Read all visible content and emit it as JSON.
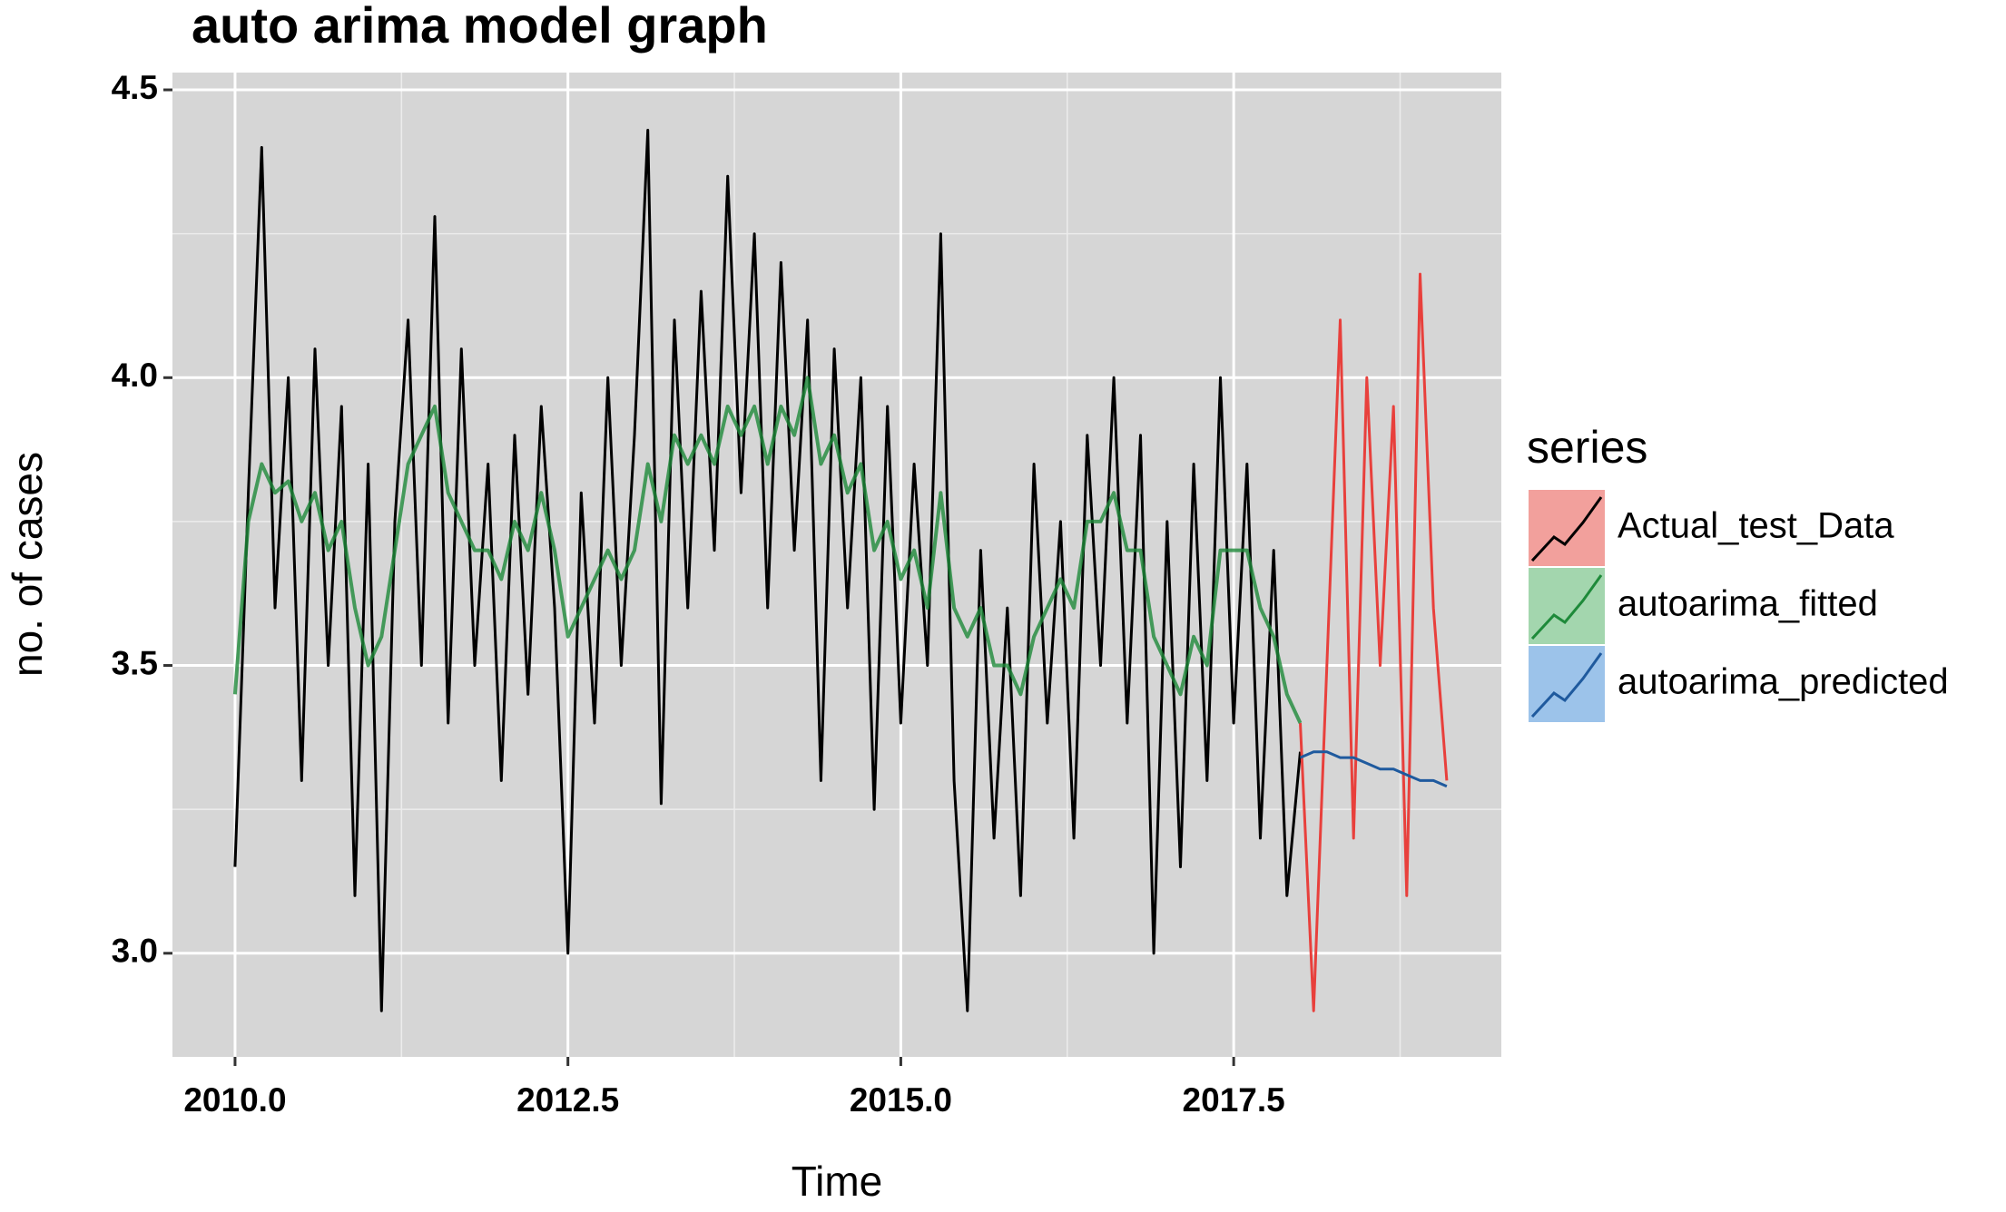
{
  "chart_data": {
    "type": "line",
    "title": "auto arima model graph",
    "x_label": "Time",
    "y_label": "no. of cases",
    "legend_title": "series",
    "legend": "right",
    "grid": true,
    "xlim": [
      2009.53,
      2019.51
    ],
    "ylim": [
      2.82,
      4.53
    ],
    "xticks": [
      {
        "value": 2010.0,
        "label": "2010.0"
      },
      {
        "value": 2012.5,
        "label": "2012.5"
      },
      {
        "value": 2015.0,
        "label": "2015.0"
      },
      {
        "value": 2017.5,
        "label": "2017.5"
      }
    ],
    "yticks": [
      {
        "value": 3.0,
        "label": "3.0"
      },
      {
        "value": 3.5,
        "label": "3.5"
      },
      {
        "value": 4.0,
        "label": "4.0"
      },
      {
        "value": 4.5,
        "label": "4.5"
      }
    ],
    "xticks_minor": [
      2011.25,
      2013.75,
      2016.25,
      2018.75
    ],
    "yticks_minor": [
      3.25,
      3.75,
      4.25
    ],
    "x": [
      2010.0,
      2010.1,
      2010.2,
      2010.3,
      2010.4,
      2010.5,
      2010.6,
      2010.7,
      2010.8,
      2010.9,
      2011.0,
      2011.1,
      2011.2,
      2011.3,
      2011.4,
      2011.5,
      2011.6,
      2011.7,
      2011.8,
      2011.9,
      2012.0,
      2012.1,
      2012.2,
      2012.3,
      2012.4,
      2012.5,
      2012.6,
      2012.7,
      2012.8,
      2012.9,
      2013.0,
      2013.1,
      2013.2,
      2013.3,
      2013.4,
      2013.5,
      2013.6,
      2013.7,
      2013.8,
      2013.9,
      2014.0,
      2014.1,
      2014.2,
      2014.3,
      2014.4,
      2014.5,
      2014.6,
      2014.7,
      2014.8,
      2014.9,
      2015.0,
      2015.1,
      2015.2,
      2015.3,
      2015.4,
      2015.5,
      2015.6,
      2015.7,
      2015.8,
      2015.9,
      2016.0,
      2016.1,
      2016.2,
      2016.3,
      2016.4,
      2016.5,
      2016.6,
      2016.7,
      2016.8,
      2016.9,
      2017.0,
      2017.1,
      2017.2,
      2017.3,
      2017.4,
      2017.5,
      2017.6,
      2017.7,
      2017.8,
      2017.9,
      2018.0,
      2018.1,
      2018.2,
      2018.3,
      2018.4,
      2018.5,
      2018.6,
      2018.7,
      2018.8,
      2018.9,
      2019.0,
      2019.1
    ],
    "main_series": {
      "color": "#000000",
      "values": [
        3.15,
        3.8,
        4.4,
        3.6,
        4.0,
        3.3,
        4.05,
        3.5,
        3.95,
        3.1,
        3.85,
        2.9,
        3.75,
        4.1,
        3.5,
        4.28,
        3.4,
        4.05,
        3.5,
        3.85,
        3.3,
        3.9,
        3.45,
        3.95,
        3.6,
        3.0,
        3.8,
        3.4,
        4.0,
        3.5,
        3.9,
        4.43,
        3.26,
        4.1,
        3.6,
        4.15,
        3.7,
        4.35,
        3.8,
        4.25,
        3.6,
        4.2,
        3.7,
        4.1,
        3.3,
        4.05,
        3.6,
        4.0,
        3.25,
        3.95,
        3.4,
        3.85,
        3.5,
        4.25,
        3.3,
        2.9,
        3.7,
        3.2,
        3.6,
        3.1,
        3.85,
        3.4,
        3.75,
        3.2,
        3.9,
        3.5,
        4.0,
        3.4,
        3.9,
        3.0,
        3.75,
        3.15,
        3.85,
        3.3,
        4.0,
        3.4,
        3.85,
        3.2,
        3.7,
        3.1,
        3.35,
        null,
        null,
        null,
        null,
        null,
        null,
        null,
        null,
        null,
        null,
        null
      ]
    },
    "series": [
      {
        "name": "Actual_test_Data",
        "color": "#e8403c",
        "key_fill": "#f2a09c",
        "values": [
          null,
          null,
          null,
          null,
          null,
          null,
          null,
          null,
          null,
          null,
          null,
          null,
          null,
          null,
          null,
          null,
          null,
          null,
          null,
          null,
          null,
          null,
          null,
          null,
          null,
          null,
          null,
          null,
          null,
          null,
          null,
          null,
          null,
          null,
          null,
          null,
          null,
          null,
          null,
          null,
          null,
          null,
          null,
          null,
          null,
          null,
          null,
          null,
          null,
          null,
          null,
          null,
          null,
          null,
          null,
          null,
          null,
          null,
          null,
          null,
          null,
          null,
          null,
          null,
          null,
          null,
          null,
          null,
          null,
          null,
          null,
          null,
          null,
          null,
          null,
          null,
          null,
          null,
          null,
          null,
          3.4,
          2.9,
          3.5,
          4.1,
          3.2,
          4.0,
          3.5,
          3.95,
          3.1,
          4.18,
          3.6,
          3.3
        ]
      },
      {
        "name": "autoarima_fitted",
        "color": "#1e8a3a",
        "key_fill": "#a3d6ae",
        "values": [
          3.45,
          3.75,
          3.85,
          3.8,
          3.82,
          3.75,
          3.8,
          3.7,
          3.75,
          3.6,
          3.5,
          3.55,
          3.7,
          3.85,
          3.9,
          3.95,
          3.8,
          3.75,
          3.7,
          3.7,
          3.65,
          3.75,
          3.7,
          3.8,
          3.7,
          3.55,
          3.6,
          3.65,
          3.7,
          3.65,
          3.7,
          3.85,
          3.75,
          3.9,
          3.85,
          3.9,
          3.85,
          3.95,
          3.9,
          3.95,
          3.85,
          3.95,
          3.9,
          4.0,
          3.85,
          3.9,
          3.8,
          3.85,
          3.7,
          3.75,
          3.65,
          3.7,
          3.6,
          3.8,
          3.6,
          3.55,
          3.6,
          3.5,
          3.5,
          3.45,
          3.55,
          3.6,
          3.65,
          3.6,
          3.75,
          3.75,
          3.8,
          3.7,
          3.7,
          3.55,
          3.5,
          3.45,
          3.55,
          3.5,
          3.7,
          3.7,
          3.7,
          3.6,
          3.55,
          3.45,
          3.4,
          null,
          null,
          null,
          null,
          null,
          null,
          null,
          null,
          null,
          null,
          null
        ]
      },
      {
        "name": "autoarima_predicted",
        "color": "#1f5a9e",
        "key_fill": "#9cc3ea",
        "values": [
          null,
          null,
          null,
          null,
          null,
          null,
          null,
          null,
          null,
          null,
          null,
          null,
          null,
          null,
          null,
          null,
          null,
          null,
          null,
          null,
          null,
          null,
          null,
          null,
          null,
          null,
          null,
          null,
          null,
          null,
          null,
          null,
          null,
          null,
          null,
          null,
          null,
          null,
          null,
          null,
          null,
          null,
          null,
          null,
          null,
          null,
          null,
          null,
          null,
          null,
          null,
          null,
          null,
          null,
          null,
          null,
          null,
          null,
          null,
          null,
          null,
          null,
          null,
          null,
          null,
          null,
          null,
          null,
          null,
          null,
          null,
          null,
          null,
          null,
          null,
          null,
          null,
          null,
          null,
          null,
          3.34,
          3.35,
          3.35,
          3.34,
          3.34,
          3.33,
          3.32,
          3.32,
          3.31,
          3.3,
          3.3,
          3.29
        ]
      }
    ]
  }
}
